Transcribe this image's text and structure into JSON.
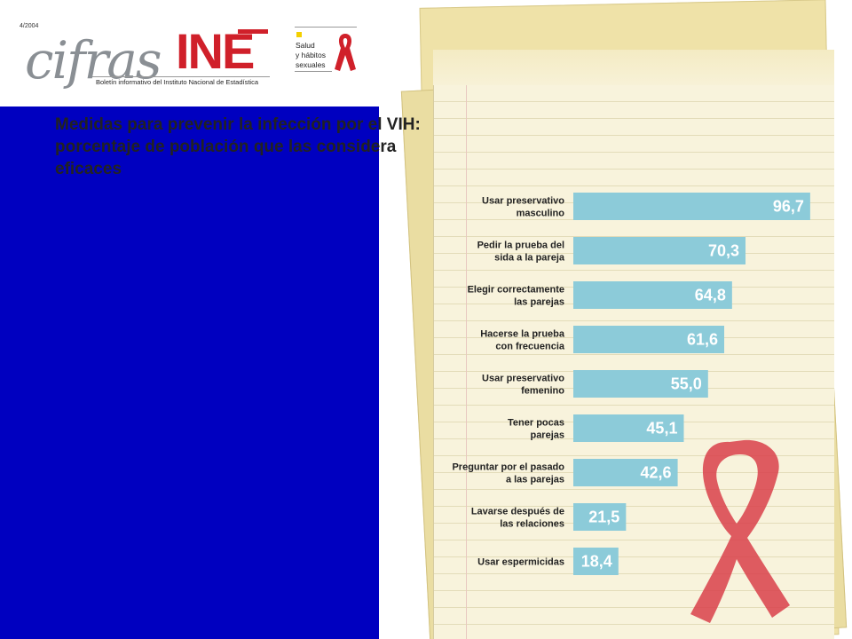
{
  "header": {
    "issue": "4/2004",
    "logo_script": "cifras",
    "logo_brand": "INE",
    "subtitle": "Boletín informativo del Instituto Nacional de Estadística",
    "section_label_lines": [
      "Salud",
      "y hábitos",
      "sexuales"
    ]
  },
  "colors": {
    "bar": "#8ccbd9",
    "brand_red": "#d0202a",
    "panel_blue": "#0000c0",
    "ribbon": "#d9404a"
  },
  "chart_data": {
    "type": "bar",
    "orientation": "horizontal",
    "title": "Medidas para prevenir la infección por el VIH: porcentaje de población que las considera eficaces",
    "categories": [
      [
        "Usar preservativo",
        "masculino"
      ],
      [
        "Pedir la prueba del",
        "sida a la pareja"
      ],
      [
        "Elegir correctamente",
        "las parejas"
      ],
      [
        "Hacerse la prueba",
        "con frecuencia"
      ],
      [
        "Usar preservativo",
        "femenino"
      ],
      [
        "Tener pocas",
        "parejas"
      ],
      [
        "Preguntar por el pasado",
        "a las parejas"
      ],
      [
        "Lavarse después de",
        "las relaciones"
      ],
      [
        "Usar espermicidas"
      ]
    ],
    "values": [
      96.7,
      70.3,
      64.8,
      61.6,
      55.0,
      45.1,
      42.6,
      21.5,
      18.4
    ],
    "value_labels": [
      "96,7",
      "70,3",
      "64,8",
      "61,6",
      "55,0",
      "45,1",
      "42,6",
      "21,5",
      "18,4"
    ],
    "xlim": [
      0,
      100
    ],
    "grid": false,
    "legend": "none"
  }
}
